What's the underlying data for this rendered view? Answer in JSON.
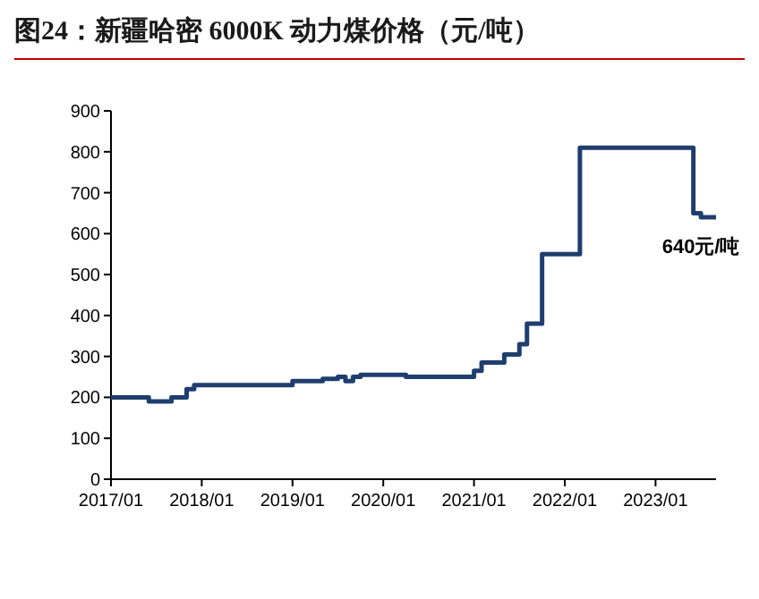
{
  "chart_data": {
    "type": "step",
    "title": "图24：新疆哈密 6000K 动力煤价格（元/吨）",
    "x": [
      "2017-01",
      "2017-06",
      "2017-09",
      "2017-11",
      "2017-12",
      "2019-01",
      "2019-05",
      "2019-07",
      "2019-08",
      "2019-09",
      "2019-10",
      "2020-04",
      "2021-01",
      "2021-02",
      "2021-05",
      "2021-07",
      "2021-08",
      "2021-10",
      "2022-03",
      "2023-06",
      "2023-07",
      "2023-09"
    ],
    "series": [
      {
        "color": "#1f3e6e",
        "values": [
          200,
          190,
          200,
          220,
          230,
          240,
          245,
          250,
          240,
          250,
          255,
          250,
          265,
          285,
          305,
          330,
          380,
          550,
          810,
          650,
          640,
          640
        ]
      }
    ],
    "xlim": [
      "2017-01",
      "2023-09"
    ],
    "xticks": [
      {
        "value": "2017-01",
        "label": "2017/01"
      },
      {
        "value": "2018-01",
        "label": "2018/01"
      },
      {
        "value": "2019-01",
        "label": "2019/01"
      },
      {
        "value": "2020-01",
        "label": "2020/01"
      },
      {
        "value": "2021-01",
        "label": "2021/01"
      },
      {
        "value": "2022-01",
        "label": "2022/01"
      },
      {
        "value": "2023-01",
        "label": "2023/01"
      }
    ],
    "ylim": [
      0,
      900
    ],
    "yticks": [
      0,
      100,
      200,
      300,
      400,
      500,
      600,
      700,
      800,
      900
    ],
    "grid": false,
    "annotations": [
      {
        "text": "640元/吨",
        "x": "2023-07",
        "y": 640
      }
    ]
  }
}
